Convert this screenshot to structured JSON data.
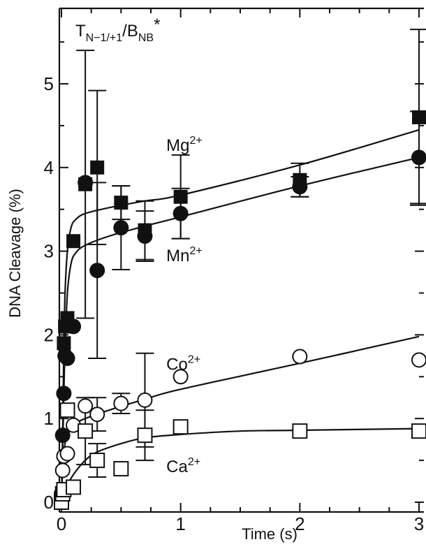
{
  "chart_data": {
    "type": "scatter",
    "title": "",
    "inset_label": {
      "base": "T",
      "sub1": "N−1/+1",
      "mid": "/B",
      "sub2": "NB",
      "tail": "*"
    },
    "xlabel": "Time (s)",
    "ylabel": "DNA Cleavage (%)",
    "xlim": [
      -0.05,
      3.08
    ],
    "ylim": [
      0,
      6.0
    ],
    "x_ticks": [
      0,
      1,
      2,
      3
    ],
    "x_tick_labels": [
      "0",
      "1",
      "2",
      "3"
    ],
    "y_ticks": [
      0,
      1,
      2,
      3,
      4,
      5
    ],
    "y_tick_labels": [
      "0",
      "1",
      "2",
      "3",
      "4",
      "5"
    ],
    "grid": false,
    "colors": {
      "ink": "#111111",
      "background": "#ffffff"
    },
    "series": [
      {
        "label": {
          "base": "Mg",
          "sup": "2+"
        },
        "label_pos": [
          0.88,
          4.2
        ],
        "marker": "filled-square",
        "points": [
          {
            "x": 0,
            "y": 0
          },
          {
            "x": 0.01,
            "y": 0.1
          },
          {
            "x": 0.02,
            "y": 1.9
          },
          {
            "x": 0.03,
            "y": 2.1
          },
          {
            "x": 0.05,
            "y": 2.2
          },
          {
            "x": 0.1,
            "y": 3.12
          },
          {
            "x": 0.2,
            "y": 3.8,
            "err": 1.6
          },
          {
            "x": 0.3,
            "y": 4.0,
            "err": 0.92
          },
          {
            "x": 0.5,
            "y": 3.58,
            "err": 0.2
          },
          {
            "x": 0.7,
            "y": 3.25,
            "err": 0.35
          },
          {
            "x": 1.0,
            "y": 3.65,
            "err": 0.5
          },
          {
            "x": 2.0,
            "y": 3.85,
            "err": 0.2
          },
          {
            "x": 3.0,
            "y": 4.6,
            "err": 1.05
          }
        ],
        "fit": [
          [
            0,
            0
          ],
          [
            0.01,
            0.8
          ],
          [
            0.02,
            1.85
          ],
          [
            0.03,
            2.5
          ],
          [
            0.05,
            3.0
          ],
          [
            0.08,
            3.28
          ],
          [
            0.12,
            3.38
          ],
          [
            0.2,
            3.45
          ],
          [
            0.4,
            3.52
          ],
          [
            0.7,
            3.6
          ],
          [
            1.0,
            3.67
          ],
          [
            2.0,
            4.03
          ],
          [
            3.0,
            4.45
          ]
        ]
      },
      {
        "label": {
          "base": "Mn",
          "sup": "2+"
        },
        "label_pos": [
          0.88,
          2.88
        ],
        "marker": "filled-circle",
        "points": [
          {
            "x": 0,
            "y": 0
          },
          {
            "x": 0.01,
            "y": 0.8
          },
          {
            "x": 0.02,
            "y": 1.3
          },
          {
            "x": 0.03,
            "y": 1.75
          },
          {
            "x": 0.05,
            "y": 1.72
          },
          {
            "x": 0.1,
            "y": 2.1
          },
          {
            "x": 0.2,
            "y": 3.82
          },
          {
            "x": 0.3,
            "y": 2.77,
            "err": 1.05
          },
          {
            "x": 0.5,
            "y": 3.28,
            "err": 0.5
          },
          {
            "x": 0.7,
            "y": 3.18,
            "err": 0.3
          },
          {
            "x": 1.0,
            "y": 3.45,
            "err": 0.3
          },
          {
            "x": 2.0,
            "y": 3.77,
            "err": 0.12
          },
          {
            "x": 3.0,
            "y": 4.12,
            "err": 0.55
          }
        ],
        "fit": [
          [
            0,
            0
          ],
          [
            0.01,
            0.6
          ],
          [
            0.02,
            1.3
          ],
          [
            0.03,
            1.85
          ],
          [
            0.05,
            2.5
          ],
          [
            0.08,
            2.85
          ],
          [
            0.12,
            2.98
          ],
          [
            0.2,
            3.07
          ],
          [
            0.4,
            3.18
          ],
          [
            0.7,
            3.3
          ],
          [
            1.0,
            3.41
          ],
          [
            2.0,
            3.78
          ],
          [
            3.0,
            4.12
          ]
        ]
      },
      {
        "label": {
          "base": "Co",
          "sup": "2+"
        },
        "label_pos": [
          0.88,
          1.58
        ],
        "marker": "open-circle",
        "points": [
          {
            "x": 0,
            "y": 0.1
          },
          {
            "x": 0.01,
            "y": 0.38
          },
          {
            "x": 0.02,
            "y": 0.55
          },
          {
            "x": 0.05,
            "y": 0.58
          },
          {
            "x": 0.1,
            "y": 0.92
          },
          {
            "x": 0.2,
            "y": 1.15
          },
          {
            "x": 0.3,
            "y": 1.05,
            "err": 0.2
          },
          {
            "x": 0.5,
            "y": 1.18,
            "err": 0.12
          },
          {
            "x": 0.7,
            "y": 1.22,
            "err": 0.56
          },
          {
            "x": 1.0,
            "y": 1.5
          },
          {
            "x": 2.0,
            "y": 1.74
          },
          {
            "x": 3.0,
            "y": 1.7
          }
        ],
        "fit": [
          [
            0,
            0
          ],
          [
            0.01,
            0.4
          ],
          [
            0.03,
            0.7
          ],
          [
            0.06,
            0.85
          ],
          [
            0.1,
            0.93
          ],
          [
            0.2,
            1.0
          ],
          [
            0.4,
            1.1
          ],
          [
            0.7,
            1.23
          ],
          [
            1.0,
            1.35
          ],
          [
            2.0,
            1.66
          ],
          [
            3.0,
            1.98
          ]
        ]
      },
      {
        "label": {
          "base": "Ca",
          "sup": "2+"
        },
        "label_pos": [
          0.88,
          0.36
        ],
        "marker": "open-square",
        "points": [
          {
            "x": 0,
            "y": 0
          },
          {
            "x": 0.01,
            "y": 0.1
          },
          {
            "x": 0.02,
            "y": 0.15
          },
          {
            "x": 0.05,
            "y": 1.1
          },
          {
            "x": 0.1,
            "y": 0.18
          },
          {
            "x": 0.2,
            "y": 0.85,
            "err": 0.4
          },
          {
            "x": 0.3,
            "y": 0.5,
            "err": 0.2
          },
          {
            "x": 0.5,
            "y": 0.4
          },
          {
            "x": 0.7,
            "y": 0.8,
            "err": 0.3
          },
          {
            "x": 1.0,
            "y": 0.9
          },
          {
            "x": 2.0,
            "y": 0.85
          },
          {
            "x": 3.0,
            "y": 0.85
          }
        ],
        "fit": [
          [
            0,
            0
          ],
          [
            0.05,
            0.2
          ],
          [
            0.1,
            0.33
          ],
          [
            0.2,
            0.5
          ],
          [
            0.3,
            0.6
          ],
          [
            0.5,
            0.7
          ],
          [
            0.7,
            0.77
          ],
          [
            1.0,
            0.81
          ],
          [
            1.5,
            0.85
          ],
          [
            2.0,
            0.86
          ],
          [
            3.0,
            0.88
          ]
        ]
      }
    ]
  }
}
